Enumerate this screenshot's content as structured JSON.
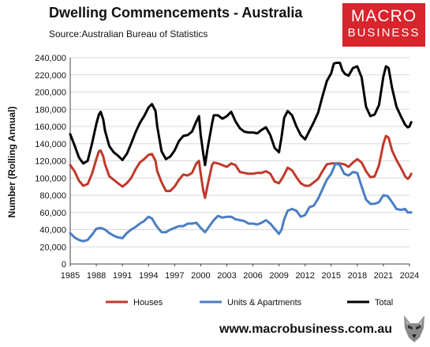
{
  "header": {
    "title": "Dwelling Commencements - Australia",
    "source": "Source:Australian Bureau of Statistics"
  },
  "logo": {
    "line1": "MACRO",
    "line2": "BUSINESS",
    "icon": "wolf-icon"
  },
  "footer": {
    "website": "www.macrobusiness.com.au"
  },
  "colors": {
    "houses": "#c0392b",
    "units": "#4a7ec4",
    "total": "#000000",
    "brand": "#d8242c"
  },
  "chart_data": {
    "type": "line",
    "title": "Dwelling Commencements - Australia",
    "ylabel": "Number (Rolling Annual)",
    "xlabel": "",
    "xlim": [
      1985,
      2024
    ],
    "ylim": [
      0,
      240000
    ],
    "y_ticks": [
      "0",
      "20,000",
      "40,000",
      "60,000",
      "80,000",
      "100,000",
      "120,000",
      "140,000",
      "160,000",
      "180,000",
      "200,000",
      "220,000",
      "240,000"
    ],
    "x_ticks": [
      "1985",
      "1988",
      "1991",
      "1994",
      "1997",
      "2000",
      "2003",
      "2006",
      "2009",
      "2012",
      "2015",
      "2018",
      "2021",
      "2024"
    ],
    "grid": "horizontal",
    "legend": "bottom",
    "series": [
      {
        "name": "Houses",
        "points": [
          [
            1985.0,
            115000
          ],
          [
            1985.5,
            108000
          ],
          [
            1986.0,
            97000
          ],
          [
            1986.5,
            91000
          ],
          [
            1987.0,
            93000
          ],
          [
            1987.5,
            105000
          ],
          [
            1988.0,
            122000
          ],
          [
            1988.3,
            131000
          ],
          [
            1988.5,
            132000
          ],
          [
            1988.8,
            125000
          ],
          [
            1989.0,
            116000
          ],
          [
            1989.5,
            102000
          ],
          [
            1990.0,
            98000
          ],
          [
            1990.5,
            94000
          ],
          [
            1991.0,
            90000
          ],
          [
            1991.5,
            94000
          ],
          [
            1992.0,
            100000
          ],
          [
            1992.5,
            110000
          ],
          [
            1993.0,
            118000
          ],
          [
            1993.5,
            122000
          ],
          [
            1994.0,
            127000
          ],
          [
            1994.4,
            128000
          ],
          [
            1994.8,
            120000
          ],
          [
            1995.0,
            108000
          ],
          [
            1995.5,
            95000
          ],
          [
            1996.0,
            85000
          ],
          [
            1996.5,
            85000
          ],
          [
            1997.0,
            90000
          ],
          [
            1997.5,
            98000
          ],
          [
            1998.0,
            104000
          ],
          [
            1998.5,
            103000
          ],
          [
            1999.0,
            106000
          ],
          [
            1999.5,
            117000
          ],
          [
            1999.8,
            120000
          ],
          [
            2000.0,
            105000
          ],
          [
            2000.3,
            85000
          ],
          [
            2000.5,
            77000
          ],
          [
            2000.8,
            92000
          ],
          [
            2001.3,
            115000
          ],
          [
            2001.5,
            118000
          ],
          [
            2002.0,
            117000
          ],
          [
            2002.5,
            115000
          ],
          [
            2003.0,
            113000
          ],
          [
            2003.5,
            117000
          ],
          [
            2004.0,
            115000
          ],
          [
            2004.5,
            107000
          ],
          [
            2005.0,
            106000
          ],
          [
            2005.5,
            105000
          ],
          [
            2006.0,
            105000
          ],
          [
            2006.5,
            106000
          ],
          [
            2007.0,
            106000
          ],
          [
            2007.5,
            108000
          ],
          [
            2008.0,
            105000
          ],
          [
            2008.5,
            96000
          ],
          [
            2009.0,
            94000
          ],
          [
            2009.5,
            102000
          ],
          [
            2010.0,
            112000
          ],
          [
            2010.5,
            109000
          ],
          [
            2011.0,
            101000
          ],
          [
            2011.5,
            94000
          ],
          [
            2012.0,
            91000
          ],
          [
            2012.5,
            91000
          ],
          [
            2013.0,
            95000
          ],
          [
            2013.5,
            99000
          ],
          [
            2014.0,
            108000
          ],
          [
            2014.5,
            116000
          ],
          [
            2015.0,
            117000
          ],
          [
            2015.5,
            117000
          ],
          [
            2016.0,
            117000
          ],
          [
            2016.5,
            116000
          ],
          [
            2017.0,
            113000
          ],
          [
            2017.5,
            118000
          ],
          [
            2018.0,
            122000
          ],
          [
            2018.5,
            118000
          ],
          [
            2019.0,
            108000
          ],
          [
            2019.5,
            101000
          ],
          [
            2020.0,
            102000
          ],
          [
            2020.5,
            115000
          ],
          [
            2021.0,
            140000
          ],
          [
            2021.3,
            149000
          ],
          [
            2021.6,
            147000
          ],
          [
            2022.0,
            132000
          ],
          [
            2022.5,
            121000
          ],
          [
            2023.0,
            112000
          ],
          [
            2023.5,
            102000
          ],
          [
            2023.8,
            99000
          ],
          [
            2024.0,
            101000
          ],
          [
            2024.2,
            105000
          ]
        ]
      },
      {
        "name": "Units & Apartments",
        "points": [
          [
            1985.0,
            36000
          ],
          [
            1985.5,
            31000
          ],
          [
            1986.0,
            28000
          ],
          [
            1986.5,
            26500
          ],
          [
            1987.0,
            28000
          ],
          [
            1987.5,
            34000
          ],
          [
            1988.0,
            41000
          ],
          [
            1988.5,
            42000
          ],
          [
            1989.0,
            40000
          ],
          [
            1989.5,
            36000
          ],
          [
            1990.0,
            33000
          ],
          [
            1990.5,
            31000
          ],
          [
            1991.0,
            30000
          ],
          [
            1991.5,
            36000
          ],
          [
            1992.0,
            40000
          ],
          [
            1992.5,
            43000
          ],
          [
            1993.0,
            47000
          ],
          [
            1993.5,
            50000
          ],
          [
            1994.0,
            55000
          ],
          [
            1994.4,
            53000
          ],
          [
            1994.8,
            46000
          ],
          [
            1995.0,
            43000
          ],
          [
            1995.5,
            37000
          ],
          [
            1996.0,
            37000
          ],
          [
            1996.5,
            40000
          ],
          [
            1997.0,
            42000
          ],
          [
            1997.5,
            44000
          ],
          [
            1998.0,
            44000
          ],
          [
            1998.5,
            47000
          ],
          [
            1999.0,
            47000
          ],
          [
            1999.5,
            48000
          ],
          [
            2000.0,
            42000
          ],
          [
            2000.5,
            37000
          ],
          [
            2001.0,
            44000
          ],
          [
            2001.5,
            51000
          ],
          [
            2002.0,
            56000
          ],
          [
            2002.5,
            54000
          ],
          [
            2003.0,
            55000
          ],
          [
            2003.5,
            55000
          ],
          [
            2004.0,
            52000
          ],
          [
            2004.5,
            51000
          ],
          [
            2005.0,
            50000
          ],
          [
            2005.5,
            47000
          ],
          [
            2006.0,
            47000
          ],
          [
            2006.5,
            46000
          ],
          [
            2007.0,
            48000
          ],
          [
            2007.5,
            51000
          ],
          [
            2008.0,
            47000
          ],
          [
            2008.5,
            41000
          ],
          [
            2009.0,
            35000
          ],
          [
            2009.3,
            40000
          ],
          [
            2009.6,
            52000
          ],
          [
            2010.0,
            62000
          ],
          [
            2010.5,
            64000
          ],
          [
            2011.0,
            62000
          ],
          [
            2011.5,
            55000
          ],
          [
            2012.0,
            57000
          ],
          [
            2012.5,
            66000
          ],
          [
            2013.0,
            68000
          ],
          [
            2013.5,
            76000
          ],
          [
            2014.0,
            87000
          ],
          [
            2014.5,
            98000
          ],
          [
            2015.0,
            105000
          ],
          [
            2015.5,
            117000
          ],
          [
            2016.0,
            115000
          ],
          [
            2016.5,
            105000
          ],
          [
            2017.0,
            103000
          ],
          [
            2017.5,
            107000
          ],
          [
            2018.0,
            106000
          ],
          [
            2018.5,
            90000
          ],
          [
            2019.0,
            75000
          ],
          [
            2019.5,
            70000
          ],
          [
            2020.0,
            70000
          ],
          [
            2020.5,
            72000
          ],
          [
            2021.0,
            80000
          ],
          [
            2021.5,
            79000
          ],
          [
            2022.0,
            72000
          ],
          [
            2022.5,
            64000
          ],
          [
            2023.0,
            63000
          ],
          [
            2023.5,
            64000
          ],
          [
            2023.8,
            60000
          ],
          [
            2024.2,
            60000
          ]
        ]
      },
      {
        "name": "Total",
        "points": [
          [
            1985.0,
            151000
          ],
          [
            1985.5,
            138000
          ],
          [
            1986.0,
            124000
          ],
          [
            1986.5,
            117000
          ],
          [
            1987.0,
            120000
          ],
          [
            1987.5,
            140000
          ],
          [
            1988.0,
            163000
          ],
          [
            1988.3,
            174000
          ],
          [
            1988.5,
            177000
          ],
          [
            1988.8,
            168000
          ],
          [
            1989.0,
            155000
          ],
          [
            1989.5,
            137000
          ],
          [
            1990.0,
            130000
          ],
          [
            1990.5,
            126000
          ],
          [
            1991.0,
            121000
          ],
          [
            1991.5,
            128000
          ],
          [
            1992.0,
            140000
          ],
          [
            1992.5,
            153000
          ],
          [
            1993.0,
            164000
          ],
          [
            1993.5,
            172000
          ],
          [
            1994.0,
            182000
          ],
          [
            1994.4,
            186000
          ],
          [
            1994.8,
            178000
          ],
          [
            1995.0,
            160000
          ],
          [
            1995.5,
            131000
          ],
          [
            1996.0,
            122000
          ],
          [
            1996.5,
            125000
          ],
          [
            1997.0,
            132000
          ],
          [
            1997.5,
            143000
          ],
          [
            1998.0,
            149000
          ],
          [
            1998.5,
            150000
          ],
          [
            1999.0,
            154000
          ],
          [
            1999.5,
            166000
          ],
          [
            1999.8,
            172000
          ],
          [
            2000.0,
            150000
          ],
          [
            2000.3,
            128000
          ],
          [
            2000.5,
            115000
          ],
          [
            2000.8,
            135000
          ],
          [
            2001.3,
            163000
          ],
          [
            2001.5,
            173000
          ],
          [
            2002.0,
            173000
          ],
          [
            2002.5,
            169000
          ],
          [
            2003.0,
            172000
          ],
          [
            2003.5,
            177000
          ],
          [
            2004.0,
            166000
          ],
          [
            2004.5,
            158000
          ],
          [
            2005.0,
            154000
          ],
          [
            2005.5,
            153000
          ],
          [
            2006.0,
            153000
          ],
          [
            2006.5,
            152000
          ],
          [
            2007.0,
            156000
          ],
          [
            2007.5,
            159000
          ],
          [
            2008.0,
            150000
          ],
          [
            2008.5,
            135000
          ],
          [
            2009.0,
            130000
          ],
          [
            2009.3,
            148000
          ],
          [
            2009.6,
            170000
          ],
          [
            2010.0,
            178000
          ],
          [
            2010.5,
            173000
          ],
          [
            2011.0,
            160000
          ],
          [
            2011.5,
            150000
          ],
          [
            2012.0,
            145000
          ],
          [
            2012.5,
            155000
          ],
          [
            2013.0,
            165000
          ],
          [
            2013.5,
            176000
          ],
          [
            2014.0,
            195000
          ],
          [
            2014.5,
            213000
          ],
          [
            2015.0,
            222000
          ],
          [
            2015.3,
            233000
          ],
          [
            2015.6,
            234000
          ],
          [
            2016.0,
            234000
          ],
          [
            2016.3,
            225000
          ],
          [
            2016.6,
            221000
          ],
          [
            2017.0,
            219000
          ],
          [
            2017.5,
            228000
          ],
          [
            2018.0,
            230000
          ],
          [
            2018.5,
            217000
          ],
          [
            2019.0,
            183000
          ],
          [
            2019.5,
            172000
          ],
          [
            2020.0,
            174000
          ],
          [
            2020.5,
            185000
          ],
          [
            2021.0,
            218000
          ],
          [
            2021.3,
            230000
          ],
          [
            2021.6,
            228000
          ],
          [
            2022.0,
            205000
          ],
          [
            2022.5,
            183000
          ],
          [
            2023.0,
            172000
          ],
          [
            2023.5,
            162000
          ],
          [
            2023.8,
            159000
          ],
          [
            2024.0,
            160000
          ],
          [
            2024.2,
            165000
          ]
        ]
      }
    ]
  }
}
